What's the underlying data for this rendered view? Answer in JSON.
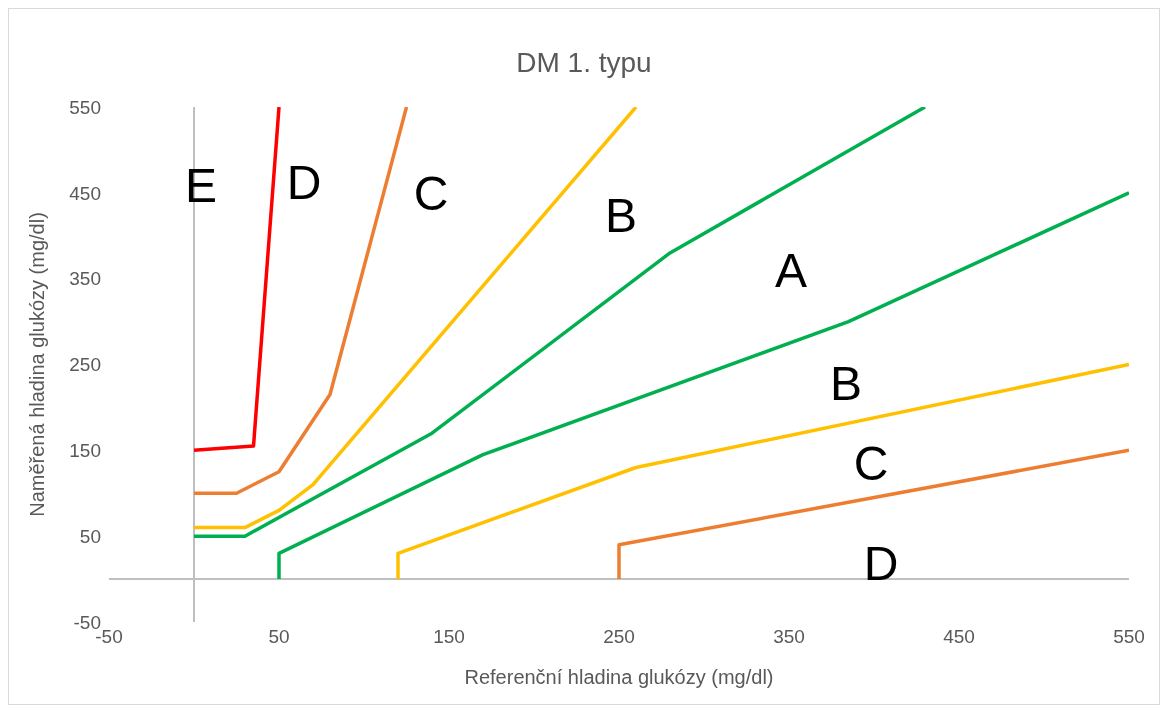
{
  "chart_data": {
    "type": "line",
    "title": "DM 1. typu",
    "xlabel": "Referenční hladina glukózy (mg/dl)",
    "ylabel": "Naměřená hladina glukózy  (mg/dl)",
    "xlim": [
      -50,
      550
    ],
    "xticks": [
      -50,
      50,
      150,
      250,
      350,
      450,
      550
    ],
    "ylim": [
      -50,
      550
    ],
    "yticks": [
      -50,
      50,
      150,
      250,
      350,
      450,
      550
    ],
    "grid": false,
    "marker": "none",
    "line_style": "solid",
    "series": [
      {
        "color": "#ff0000",
        "x": [
          0,
          35,
          50
        ],
        "values": [
          150,
          155,
          550
        ]
      },
      {
        "color": "#ed7d31",
        "x": [
          0,
          25,
          50,
          80,
          125
        ],
        "values": [
          100,
          100,
          125,
          215,
          550
        ]
      },
      {
        "color": "#ffc000",
        "x": [
          0,
          30,
          50,
          70,
          260
        ],
        "values": [
          60,
          60,
          80,
          110,
          550
        ]
      },
      {
        "color": "#00b050",
        "x": [
          0,
          30,
          140,
          280,
          430
        ],
        "values": [
          50,
          50,
          170,
          380,
          550
        ]
      },
      {
        "color": "#00b050",
        "x": [
          50,
          50,
          170,
          385,
          550
        ],
        "values": [
          0,
          30,
          145,
          300,
          450
        ]
      },
      {
        "color": "#ffc000",
        "x": [
          120,
          120,
          260,
          550
        ],
        "values": [
          0,
          30,
          130,
          250
        ]
      },
      {
        "color": "#ed7d31",
        "x": [
          250,
          250,
          550
        ],
        "values": [
          0,
          40,
          150
        ]
      }
    ],
    "annotations": [
      "E",
      "D",
      "C",
      "B",
      "A",
      "B",
      "C",
      "D"
    ]
  }
}
